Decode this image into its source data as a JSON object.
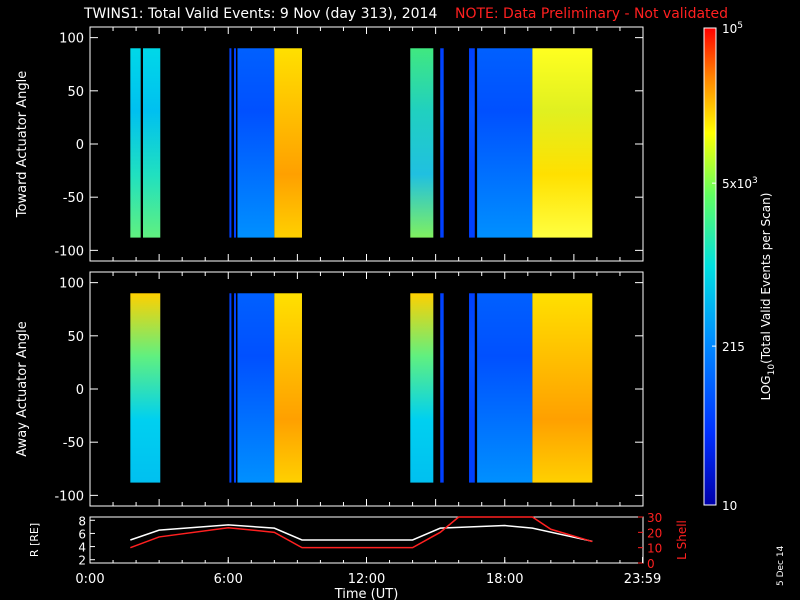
{
  "title": {
    "main": "TWINS1: Total Valid Events:  9 Nov (day 313), 2014",
    "note": "NOTE: Data Preliminary - Not validated",
    "note_color": "#ff2020"
  },
  "stamp": "5 Dec 14",
  "chart_data": [
    {
      "type": "heatmap",
      "panel": "top",
      "ylabel": "Toward Actuator Angle",
      "ylim": [
        -110,
        110
      ],
      "yticks": [
        -100,
        -50,
        0,
        50,
        100
      ],
      "xlim": [
        0,
        24
      ],
      "colorscale": "log",
      "data_blocks": [
        {
          "t0": 1.75,
          "t1": 2.2,
          "a0": -88,
          "a1": 90,
          "profile": "cyan-green"
        },
        {
          "t0": 2.3,
          "t1": 3.05,
          "a0": -88,
          "a1": 90,
          "profile": "cyan-green"
        },
        {
          "t0": 6.05,
          "t1": 6.12,
          "a0": -88,
          "a1": 90,
          "profile": "blue"
        },
        {
          "t0": 6.25,
          "t1": 6.33,
          "a0": -88,
          "a1": 90,
          "profile": "blue"
        },
        {
          "t0": 6.4,
          "t1": 8.0,
          "a0": -88,
          "a1": 90,
          "profile": "blue-rising"
        },
        {
          "t0": 8.0,
          "t1": 9.2,
          "a0": -88,
          "a1": 90,
          "profile": "yellow-orange"
        },
        {
          "t0": 13.9,
          "t1": 14.9,
          "a0": -88,
          "a1": 90,
          "profile": "green-cyan"
        },
        {
          "t0": 15.2,
          "t1": 15.35,
          "a0": -88,
          "a1": 90,
          "profile": "blue"
        },
        {
          "t0": 16.45,
          "t1": 16.7,
          "a0": -88,
          "a1": 90,
          "profile": "blue"
        },
        {
          "t0": 16.8,
          "t1": 19.2,
          "a0": -88,
          "a1": 90,
          "profile": "blue-rising"
        },
        {
          "t0": 19.2,
          "t1": 21.8,
          "a0": -88,
          "a1": 90,
          "profile": "yellow"
        }
      ]
    },
    {
      "type": "heatmap",
      "panel": "bottom",
      "ylabel": "Away Actuator Angle",
      "ylim": [
        -110,
        110
      ],
      "yticks": [
        -100,
        -50,
        0,
        50,
        100
      ],
      "xlim": [
        0,
        24
      ],
      "colorscale": "log",
      "data_blocks": [
        {
          "t0": 1.75,
          "t1": 3.05,
          "a0": -88,
          "a1": 90,
          "profile": "yellow-top-cyan"
        },
        {
          "t0": 6.05,
          "t1": 6.12,
          "a0": -88,
          "a1": 90,
          "profile": "blue"
        },
        {
          "t0": 6.25,
          "t1": 6.33,
          "a0": -88,
          "a1": 90,
          "profile": "blue"
        },
        {
          "t0": 6.4,
          "t1": 8.0,
          "a0": -88,
          "a1": 90,
          "profile": "blue-rising"
        },
        {
          "t0": 8.0,
          "t1": 9.2,
          "a0": -88,
          "a1": 90,
          "profile": "yellow-orange"
        },
        {
          "t0": 13.9,
          "t1": 14.9,
          "a0": -88,
          "a1": 90,
          "profile": "yellow-top-cyan"
        },
        {
          "t0": 15.2,
          "t1": 15.35,
          "a0": -88,
          "a1": 90,
          "profile": "blue"
        },
        {
          "t0": 16.45,
          "t1": 16.7,
          "a0": -88,
          "a1": 90,
          "profile": "blue"
        },
        {
          "t0": 16.8,
          "t1": 19.2,
          "a0": -88,
          "a1": 90,
          "profile": "blue-rising"
        },
        {
          "t0": 19.2,
          "t1": 21.8,
          "a0": -88,
          "a1": 90,
          "profile": "yellow-orange"
        }
      ]
    },
    {
      "type": "line",
      "panel": "ephemeris",
      "xlabel": "Time (UT)",
      "xticks": [
        "0:00",
        "6:00",
        "12:00",
        "18:00",
        "23:59"
      ],
      "xtick_values": [
        0,
        6,
        12,
        18,
        23.98
      ],
      "left_axis": {
        "ylabel": "R [RE]",
        "ylim": [
          1.5,
          8.5
        ],
        "yticks": [
          2,
          4,
          6,
          8
        ]
      },
      "right_axis": {
        "ylabel": "L Shell",
        "ylim": [
          0,
          30
        ],
        "yticks": [
          0,
          10,
          20,
          30
        ],
        "color": "#ff2020"
      },
      "series": [
        {
          "name": "R [RE]",
          "axis": "left",
          "color": "#ffffff",
          "x": [
            1.75,
            3.0,
            6.0,
            8.0,
            9.2,
            14.0,
            15.2,
            18.0,
            19.2,
            21.8
          ],
          "y": [
            5.0,
            6.5,
            7.3,
            6.8,
            5.0,
            5.0,
            6.8,
            7.2,
            6.8,
            4.8
          ]
        },
        {
          "name": "L Shell",
          "axis": "right",
          "color": "#ff2020",
          "x": [
            1.75,
            3.0,
            6.0,
            8.0,
            9.2,
            14.0,
            15.2,
            16.0,
            19.2,
            20.0,
            21.8
          ],
          "y": [
            10,
            17,
            23,
            20,
            10,
            10,
            20,
            31,
            31,
            22,
            14
          ]
        }
      ]
    }
  ],
  "colorbar": {
    "label_parts": [
      "LOG",
      "10",
      "(Total Valid Events per Scan)"
    ],
    "ticks": [
      {
        "label": "10",
        "value": 10
      },
      {
        "label": "215",
        "value": 215
      },
      {
        "label_base": "5x10",
        "label_exp": "3",
        "value": 5000
      },
      {
        "label_base": "10",
        "label_exp": "5",
        "value": 100000
      }
    ],
    "range": [
      10,
      100000
    ]
  }
}
